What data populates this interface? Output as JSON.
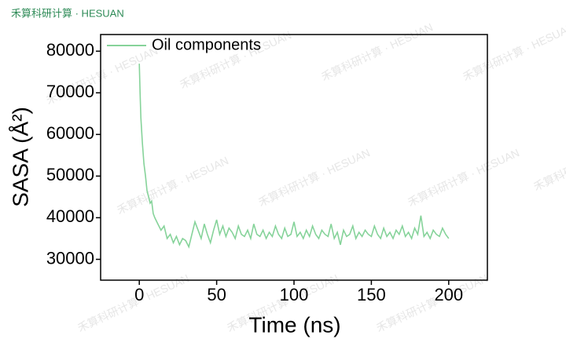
{
  "header": {
    "brand": "禾算科研计算 · HESUAN"
  },
  "chart_data": {
    "type": "line",
    "x_label": "Time (ns)",
    "y_label": "SASA (Å²)",
    "xlim": [
      -25,
      225
    ],
    "ylim": [
      25000,
      84000
    ],
    "xticks": [
      0,
      50,
      100,
      150,
      200
    ],
    "yticks": [
      30000,
      40000,
      50000,
      60000,
      70000,
      80000
    ],
    "legend": "upper-left",
    "series": [
      {
        "name": "Oil components",
        "color": "#86d39a",
        "x": [
          0,
          0.5,
          1,
          2,
          3,
          4,
          5,
          6,
          7,
          8,
          9,
          10,
          12,
          14,
          16,
          18,
          20,
          22,
          24,
          26,
          28,
          30,
          32,
          34,
          36,
          38,
          40,
          42,
          44,
          46,
          48,
          50,
          52,
          54,
          56,
          58,
          60,
          62,
          64,
          66,
          68,
          70,
          72,
          74,
          76,
          78,
          80,
          82,
          84,
          86,
          88,
          90,
          92,
          94,
          96,
          98,
          100,
          102,
          104,
          106,
          108,
          110,
          112,
          114,
          116,
          118,
          120,
          122,
          124,
          126,
          128,
          130,
          132,
          134,
          136,
          138,
          140,
          142,
          144,
          146,
          148,
          150,
          152,
          154,
          156,
          158,
          160,
          162,
          164,
          166,
          168,
          170,
          172,
          174,
          176,
          178,
          180,
          182,
          184,
          186,
          188,
          190,
          192,
          194,
          196,
          198,
          200
        ],
        "values": [
          77000,
          70000,
          64000,
          58000,
          53000,
          50000,
          46500,
          45000,
          43500,
          44000,
          41000,
          40000,
          38500,
          37000,
          38000,
          35000,
          36000,
          34000,
          35500,
          33500,
          35000,
          34500,
          33000,
          36000,
          39000,
          37000,
          35000,
          38500,
          36000,
          34000,
          37000,
          39500,
          36000,
          38000,
          35500,
          37500,
          36500,
          35000,
          38000,
          36000,
          35500,
          37000,
          35000,
          38500,
          36000,
          35500,
          37000,
          35000,
          36500,
          35500,
          38000,
          36000,
          35000,
          37500,
          35500,
          36000,
          39000,
          35500,
          36500,
          35000,
          37000,
          35500,
          38000,
          36000,
          35000,
          37000,
          36000,
          35500,
          38500,
          35000,
          36500,
          33500,
          37000,
          35500,
          36000,
          38000,
          35000,
          36500,
          35500,
          37000,
          36000,
          35500,
          38000,
          36000,
          35000,
          37500,
          35500,
          36500,
          35000,
          37000,
          36000,
          38000,
          35500,
          36500,
          35000,
          37500,
          36000,
          40500,
          35500,
          36500,
          35000,
          37000,
          36000,
          35500,
          37500,
          36000,
          35000
        ]
      }
    ]
  }
}
